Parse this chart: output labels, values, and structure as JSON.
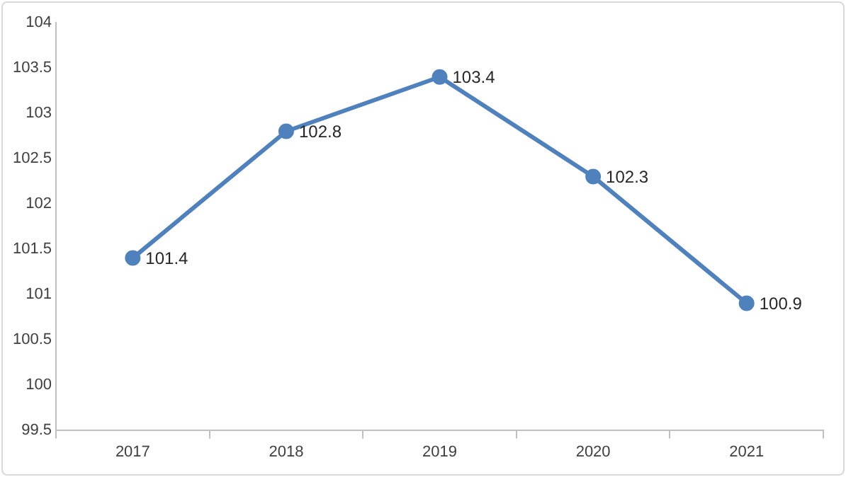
{
  "chart_data": {
    "type": "line",
    "categories": [
      "2017",
      "2018",
      "2019",
      "2020",
      "2021"
    ],
    "series": [
      {
        "color": "#4f81bd",
        "values": [
          101.4,
          102.8,
          103.4,
          102.3,
          100.9
        ]
      }
    ],
    "ylim": [
      99.5,
      104
    ],
    "yticks": [
      99.5,
      100,
      100.5,
      101,
      101.5,
      102,
      102.5,
      103,
      103.5,
      104
    ],
    "grid": false,
    "legend": false,
    "marker": "circle",
    "line_style": "solid",
    "data_labels": true
  }
}
